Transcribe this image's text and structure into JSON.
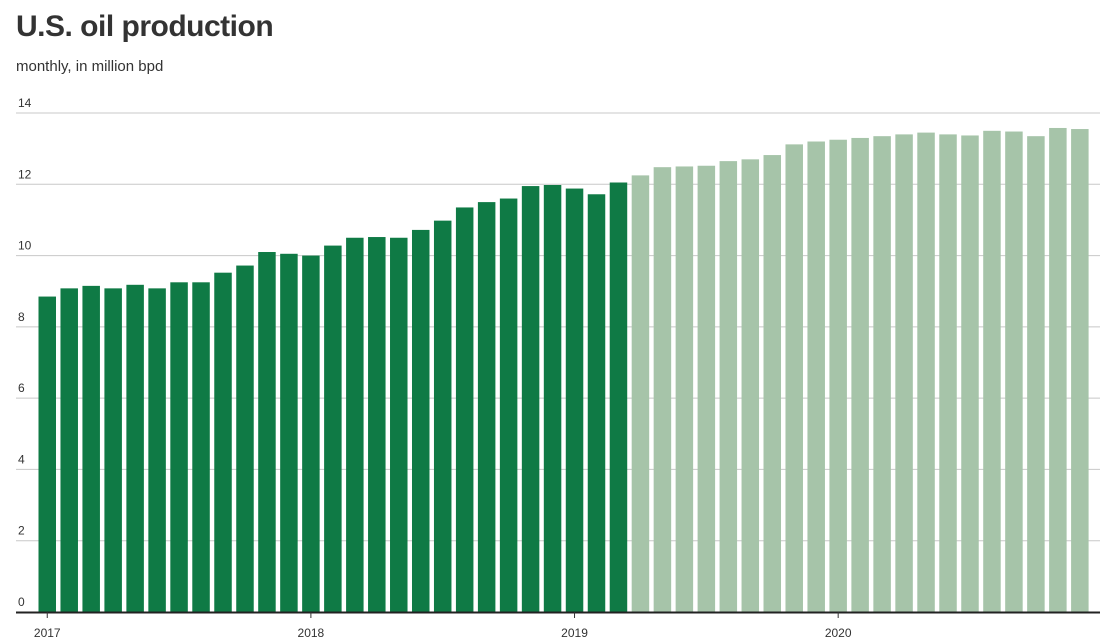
{
  "title": "U.S. oil production",
  "subtitle": "monthly, in million bpd",
  "chart_data": {
    "type": "bar",
    "title": "U.S. oil production",
    "subtitle": "monthly, in million bpd",
    "xlabel": "",
    "ylabel": "",
    "ylim": [
      0,
      14
    ],
    "yticks": [
      0,
      2,
      4,
      6,
      8,
      10,
      12,
      14
    ],
    "xtick_labels": [
      "2017",
      "2018",
      "2019",
      "2020"
    ],
    "grid": true,
    "colors": {
      "actual": "#0f7a45",
      "forecast": "#a6c4a9",
      "baseline": "#222222",
      "grid": "#c8c8c8"
    },
    "series": [
      {
        "values": [
          8.85,
          9.08,
          9.15,
          9.08,
          9.18,
          9.08,
          9.25,
          9.25,
          9.52,
          9.72,
          10.1,
          10.05,
          10.0,
          10.28,
          10.5,
          10.52,
          10.5,
          10.72,
          10.98,
          11.35,
          11.5,
          11.6,
          11.95,
          11.98,
          11.88,
          11.72,
          12.05
        ]
      },
      {
        "values": [
          12.25,
          12.48,
          12.5,
          12.52,
          12.65,
          12.7,
          12.82,
          13.12,
          13.2,
          13.25,
          13.3,
          13.35,
          13.4,
          13.45,
          13.4,
          13.37,
          13.5,
          13.48,
          13.35,
          13.58,
          13.55
        ]
      }
    ]
  }
}
